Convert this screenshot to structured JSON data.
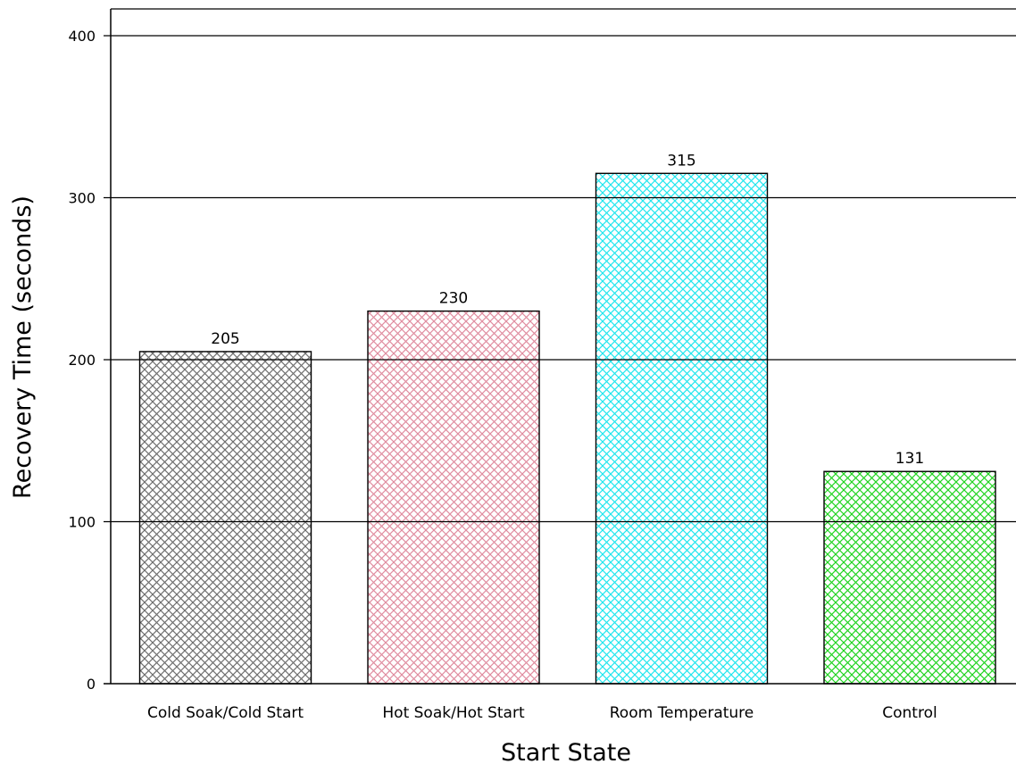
{
  "chart_data": {
    "type": "bar",
    "categories": [
      "Cold Soak/Cold Start",
      "Hot Soak/Hot Start",
      "Room Temperature",
      "Control"
    ],
    "values": [
      205,
      230,
      315,
      131
    ],
    "data_labels": [
      "205",
      "230",
      "315",
      "131"
    ],
    "colors": [
      "#6f6f6f",
      "#e08da0",
      "#22e6ee",
      "#22d422"
    ],
    "xlabel": "Start State",
    "ylabel": "Recovery Time (seconds)",
    "ylim": [
      0,
      420
    ],
    "yticks": [
      0,
      100,
      200,
      300,
      400
    ],
    "grid": true,
    "fill_pattern": "crosshatch"
  }
}
